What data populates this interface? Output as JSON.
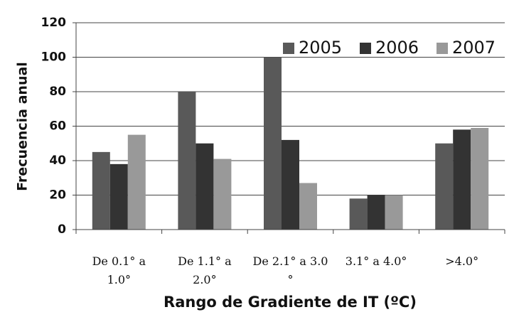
{
  "chart_data": {
    "type": "bar",
    "x_label": "Rango de Gradiente de IT (ºC)",
    "y_label": "Frecuencia anual",
    "categories": [
      "De 0.1° a 1.0°",
      "De 1.1° a 2.0°",
      "De 2.1° a 3.0 °",
      "3.1° a 4.0°",
      ">4.0°"
    ],
    "series": [
      {
        "name": "2005",
        "color": "#595959",
        "values": [
          45,
          80,
          100,
          18,
          50
        ]
      },
      {
        "name": "2006",
        "color": "#333333",
        "values": [
          38,
          50,
          52,
          20,
          58
        ]
      },
      {
        "name": "2007",
        "color": "#999999",
        "values": [
          55,
          41,
          27,
          20,
          59
        ]
      }
    ],
    "ylim": [
      0,
      120
    ],
    "yticks": [
      0,
      20,
      40,
      60,
      80,
      100,
      120
    ],
    "grid": true,
    "legend": "top-right"
  }
}
